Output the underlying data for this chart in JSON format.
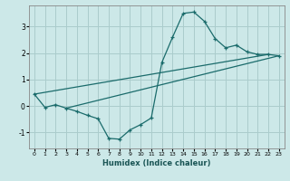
{
  "xlabel": "Humidex (Indice chaleur)",
  "bg_color": "#cce8e8",
  "grid_color": "#aacccc",
  "line_color": "#1a6b6b",
  "xlim": [
    -0.5,
    23.5
  ],
  "ylim": [
    -1.6,
    3.8
  ],
  "xticks": [
    0,
    1,
    2,
    3,
    4,
    5,
    6,
    7,
    8,
    9,
    10,
    11,
    12,
    13,
    14,
    15,
    16,
    17,
    18,
    19,
    20,
    21,
    22,
    23
  ],
  "yticks": [
    -1,
    0,
    1,
    2,
    3
  ],
  "curve1_x": [
    0,
    1,
    2,
    3,
    4,
    5,
    6,
    7,
    8,
    9,
    10,
    11,
    12,
    13,
    14,
    15,
    16,
    17,
    18,
    19,
    20,
    21,
    22,
    23
  ],
  "curve1_y": [
    0.45,
    -0.05,
    0.05,
    -0.08,
    -0.2,
    -0.35,
    -0.48,
    -1.22,
    -1.25,
    -0.9,
    -0.7,
    -0.45,
    1.65,
    2.6,
    3.5,
    3.55,
    3.2,
    2.55,
    2.2,
    2.3,
    2.05,
    1.95,
    1.95,
    1.9
  ],
  "line1_x": [
    0,
    22
  ],
  "line1_y": [
    0.45,
    1.95
  ],
  "line2_x": [
    3,
    23
  ],
  "line2_y": [
    -0.08,
    1.9
  ]
}
